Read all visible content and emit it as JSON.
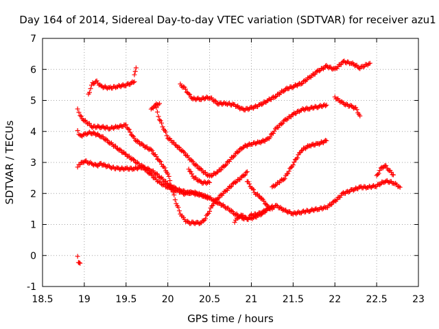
{
  "chart_data": {
    "type": "scatter",
    "title": "Day 164 of 2014, Sidereal Day-to-day VTEC variation (SDTVAR) for receiver azu1",
    "xlabel": "GPS time / hours",
    "ylabel": "SDTVAR / TECUs",
    "xlim": [
      18.5,
      23
    ],
    "ylim": [
      -1,
      7
    ],
    "x_ticks": [
      "18.5",
      "19",
      "19.5",
      "20",
      "20.5",
      "21",
      "21.5",
      "22",
      "22.5",
      "23"
    ],
    "y_ticks": [
      "-1",
      "0",
      "1",
      "2",
      "3",
      "4",
      "5",
      "6",
      "7"
    ],
    "grid": true,
    "marker": "plus",
    "color": "#ff0000",
    "series": [
      {
        "x": [
          18.92,
          18.95,
          19.0,
          19.05,
          19.1,
          19.15,
          19.2,
          19.3,
          19.4,
          19.5,
          19.6,
          19.7,
          19.8,
          19.9,
          20.0,
          20.1,
          20.2,
          20.3,
          20.4,
          20.5,
          20.6,
          20.7,
          20.8,
          20.9,
          21.0,
          21.1,
          21.2,
          21.3,
          21.4,
          21.5,
          21.6,
          21.7,
          21.8,
          21.9,
          22.0,
          22.1,
          22.2,
          22.3,
          22.4,
          22.5,
          22.6,
          22.7,
          22.78
        ],
        "y": [
          2.85,
          2.95,
          3.05,
          3.0,
          2.95,
          2.9,
          2.95,
          2.85,
          2.8,
          2.8,
          2.8,
          2.85,
          2.75,
          2.55,
          2.3,
          2.15,
          2.05,
          2.0,
          1.95,
          1.85,
          1.7,
          1.55,
          1.35,
          1.2,
          1.2,
          1.3,
          1.5,
          1.6,
          1.45,
          1.35,
          1.4,
          1.45,
          1.5,
          1.55,
          1.75,
          2.0,
          2.1,
          2.2,
          2.2,
          2.25,
          2.4,
          2.35,
          2.2
        ]
      },
      {
        "x": [
          18.92,
          18.95,
          19.0,
          19.1,
          19.2,
          19.3,
          19.4,
          19.5,
          19.6,
          19.7,
          19.8,
          19.9,
          20.0,
          20.05,
          20.1,
          20.15,
          20.2,
          20.25,
          20.3,
          20.35,
          20.4,
          20.45,
          20.5,
          20.55,
          20.6,
          20.7,
          20.8,
          20.9,
          20.95
        ],
        "y": [
          4.7,
          4.5,
          4.35,
          4.15,
          4.15,
          4.1,
          4.15,
          4.2,
          3.75,
          3.55,
          3.4,
          3.05,
          2.65,
          2.15,
          1.7,
          1.35,
          1.15,
          1.05,
          1.05,
          1.05,
          1.05,
          1.2,
          1.45,
          1.7,
          1.85,
          2.1,
          2.35,
          2.55,
          2.7
        ]
      },
      {
        "x": [
          18.92,
          18.95,
          19.0,
          19.05,
          19.1,
          19.2,
          19.3,
          19.4,
          19.5,
          19.6,
          19.7,
          19.8,
          19.9,
          20.0,
          20.1,
          20.2,
          20.3,
          20.4,
          20.5
        ],
        "y": [
          4.0,
          3.85,
          3.9,
          3.95,
          3.95,
          3.85,
          3.65,
          3.45,
          3.25,
          3.05,
          2.85,
          2.6,
          2.35,
          2.2,
          2.1,
          2.0,
          2.05,
          1.95,
          1.85
        ]
      },
      {
        "x": [
          19.05,
          19.1,
          19.15,
          19.2,
          19.3,
          19.4,
          19.5,
          19.55,
          19.6
        ],
        "y": [
          5.2,
          5.55,
          5.6,
          5.45,
          5.4,
          5.45,
          5.5,
          5.55,
          5.6
        ]
      },
      {
        "x": [
          19.6,
          19.62
        ],
        "y": [
          5.85,
          6.05
        ]
      },
      {
        "x": [
          18.92,
          18.93,
          18.95
        ],
        "y": [
          0.0,
          -0.2,
          -0.25
        ]
      },
      {
        "x": [
          19.85,
          19.9,
          19.95,
          20.0,
          20.1,
          20.2,
          20.3,
          20.4,
          20.5,
          20.6,
          20.7,
          20.8,
          20.9,
          21.0,
          21.1,
          21.2,
          21.3,
          21.4,
          21.5,
          21.6,
          21.7,
          21.8,
          21.9
        ],
        "y": [
          4.85,
          4.4,
          4.1,
          3.8,
          3.55,
          3.3,
          3.0,
          2.75,
          2.55,
          2.7,
          2.95,
          3.25,
          3.5,
          3.6,
          3.65,
          3.75,
          4.1,
          4.35,
          4.55,
          4.7,
          4.75,
          4.8,
          4.85
        ]
      },
      {
        "x": [
          19.8,
          19.85,
          19.9
        ],
        "y": [
          4.7,
          4.85,
          4.9
        ]
      },
      {
        "x": [
          20.15,
          20.2,
          20.25,
          20.3,
          20.4,
          20.5,
          20.6,
          20.7,
          20.8,
          20.9,
          21.0,
          21.1,
          21.2,
          21.3,
          21.4,
          21.5,
          21.6,
          21.7,
          21.8,
          21.9,
          22.0,
          22.1,
          22.2,
          22.3,
          22.42
        ],
        "y": [
          5.5,
          5.4,
          5.2,
          5.05,
          5.05,
          5.1,
          4.9,
          4.9,
          4.85,
          4.7,
          4.75,
          4.85,
          5.0,
          5.15,
          5.35,
          5.45,
          5.55,
          5.75,
          5.95,
          6.1,
          6.0,
          6.25,
          6.2,
          6.05,
          6.2
        ]
      },
      {
        "x": [
          22.0,
          22.1,
          22.2,
          22.25,
          22.3
        ],
        "y": [
          5.1,
          4.9,
          4.8,
          4.75,
          4.5
        ]
      },
      {
        "x": [
          20.25,
          20.3,
          20.4,
          20.5
        ],
        "y": [
          2.8,
          2.55,
          2.35,
          2.35
        ]
      },
      {
        "x": [
          20.8,
          20.85,
          20.9,
          20.95,
          21.0,
          21.1,
          21.2,
          21.25
        ],
        "y": [
          1.1,
          1.25,
          1.3,
          1.15,
          1.3,
          1.35,
          1.5,
          1.6
        ]
      },
      {
        "x": [
          20.95,
          21.0,
          21.05,
          21.1,
          21.15,
          21.2,
          21.25
        ],
        "y": [
          2.4,
          2.2,
          2.0,
          1.9,
          1.75,
          1.55,
          1.5
        ]
      },
      {
        "x": [
          21.25,
          21.3,
          21.4,
          21.5,
          21.6,
          21.7,
          21.8,
          21.9
        ],
        "y": [
          2.2,
          2.3,
          2.5,
          2.95,
          3.4,
          3.55,
          3.6,
          3.7
        ]
      },
      {
        "x": [
          22.5,
          22.55,
          22.6,
          22.65,
          22.7
        ],
        "y": [
          2.55,
          2.8,
          2.9,
          2.75,
          2.6
        ]
      }
    ]
  }
}
